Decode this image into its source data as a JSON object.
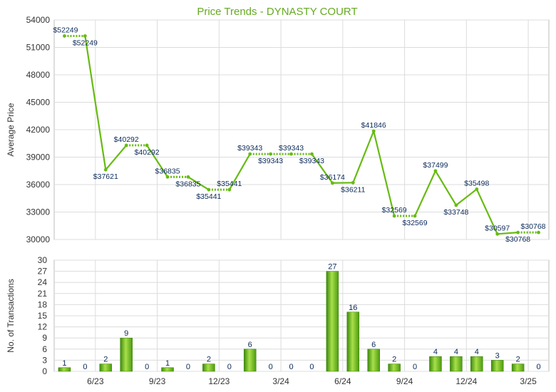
{
  "chart_data": [
    {
      "type": "line",
      "title": "Price Trends - DYNASTY COURT",
      "ylabel": "Average Price",
      "ylim": [
        30000,
        54000
      ],
      "yticks": [
        "54000",
        "51000",
        "48000",
        "45000",
        "42000",
        "39000",
        "36000",
        "33000",
        "30000"
      ],
      "grid": true,
      "color": "#66bb11",
      "series": [
        {
          "points": [
            {
              "m": 0,
              "v": 52249,
              "label": "$52249"
            },
            {
              "m": 1,
              "v": 52249,
              "label": "$52249"
            },
            {
              "m": 2,
              "v": 37621,
              "label": "$37621"
            },
            {
              "m": 3,
              "v": 40292,
              "label": "$40292"
            },
            {
              "m": 4,
              "v": 40292,
              "label": "$40292"
            },
            {
              "m": 5,
              "v": 36835,
              "label": "$36835"
            },
            {
              "m": 6,
              "v": 36835,
              "label": "$36835"
            },
            {
              "m": 7,
              "v": 35441,
              "label": "$35441"
            },
            {
              "m": 8,
              "v": 35441,
              "label": "$35441"
            },
            {
              "m": 9,
              "v": 39343,
              "label": "$39343"
            },
            {
              "m": 10,
              "v": 39343,
              "label": "$39343"
            },
            {
              "m": 11,
              "v": 39343,
              "label": "$39343"
            },
            {
              "m": 12,
              "v": 39343,
              "label": "$39343"
            },
            {
              "m": 13,
              "v": 36174,
              "label": "$36174"
            },
            {
              "m": 14,
              "v": 36211,
              "label": "$36211"
            },
            {
              "m": 15,
              "v": 41846,
              "label": "$41846"
            },
            {
              "m": 16,
              "v": 32569,
              "label": "$32569"
            },
            {
              "m": 17,
              "v": 32569,
              "label": "$32569"
            },
            {
              "m": 18,
              "v": 37499,
              "label": "$37499"
            },
            {
              "m": 19,
              "v": 33748,
              "label": "$33748"
            },
            {
              "m": 20,
              "v": 35498,
              "label": "$35498"
            },
            {
              "m": 21,
              "v": 30597,
              "label": "$30597"
            },
            {
              "m": 22,
              "v": 30768,
              "label": "$30768"
            },
            {
              "m": 23,
              "v": 30768,
              "label": "$30768"
            }
          ],
          "dotted_segments": [
            [
              0,
              1
            ],
            [
              3,
              4
            ],
            [
              5,
              6
            ],
            [
              7,
              8
            ],
            [
              9,
              10
            ],
            [
              10,
              11
            ],
            [
              11,
              12
            ],
            [
              16,
              17
            ],
            [
              22,
              23
            ]
          ]
        }
      ]
    },
    {
      "type": "bar",
      "ylabel": "No. of Transactions",
      "ylim": [
        0,
        30
      ],
      "yticks": [
        "30",
        "27",
        "24",
        "21",
        "18",
        "15",
        "12",
        "9",
        "6",
        "3",
        "0"
      ],
      "categories": [
        "",
        "",
        "6/23",
        "",
        "",
        "9/23",
        "",
        "",
        "12/23",
        "",
        "",
        "3/24",
        "",
        "",
        "6/24",
        "",
        "",
        "9/24",
        "",
        "",
        "12/24",
        "",
        "",
        "3/25"
      ],
      "values": [
        1,
        0,
        2,
        9,
        0,
        1,
        0,
        2,
        0,
        6,
        0,
        0,
        0,
        27,
        16,
        6,
        2,
        0,
        4,
        4,
        4,
        3,
        2,
        0
      ],
      "color": "#66bb11"
    }
  ]
}
